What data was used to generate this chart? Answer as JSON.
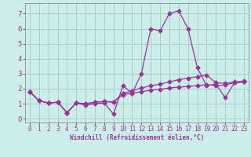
{
  "xlabel": "Windchill (Refroidissement éolien,°C)",
  "background_color": "#cceee8",
  "grid_color": "#aacccc",
  "line_color": "#993399",
  "x_data": [
    0,
    1,
    2,
    3,
    4,
    5,
    6,
    7,
    8,
    9,
    10,
    11,
    12,
    13,
    14,
    15,
    16,
    17,
    18,
    19,
    20,
    21,
    22,
    23
  ],
  "y_series1": [
    1.8,
    1.2,
    1.05,
    1.1,
    0.4,
    1.05,
    0.9,
    1.0,
    1.05,
    0.3,
    2.2,
    1.7,
    3.0,
    6.0,
    5.85,
    7.0,
    7.2,
    6.0,
    3.4,
    2.2,
    2.3,
    1.4,
    2.4,
    2.45
  ],
  "y_series2": [
    1.8,
    1.2,
    1.05,
    1.1,
    0.4,
    1.05,
    1.0,
    1.1,
    1.15,
    1.1,
    1.7,
    1.85,
    2.05,
    2.2,
    2.3,
    2.45,
    2.6,
    2.7,
    2.8,
    2.9,
    2.4,
    2.35,
    2.45,
    2.5
  ],
  "y_series3": [
    1.8,
    1.2,
    1.05,
    1.1,
    0.4,
    1.05,
    1.0,
    1.1,
    1.15,
    1.1,
    1.6,
    1.7,
    1.8,
    1.9,
    1.95,
    2.05,
    2.1,
    2.15,
    2.2,
    2.28,
    2.2,
    2.25,
    2.4,
    2.45
  ],
  "ylim": [
    -0.25,
    7.7
  ],
  "xlim": [
    -0.5,
    23.5
  ],
  "yticks": [
    0,
    1,
    2,
    3,
    4,
    5,
    6,
    7
  ],
  "xticks": [
    0,
    1,
    2,
    3,
    4,
    5,
    6,
    7,
    8,
    9,
    10,
    11,
    12,
    13,
    14,
    15,
    16,
    17,
    18,
    19,
    20,
    21,
    22,
    23
  ]
}
